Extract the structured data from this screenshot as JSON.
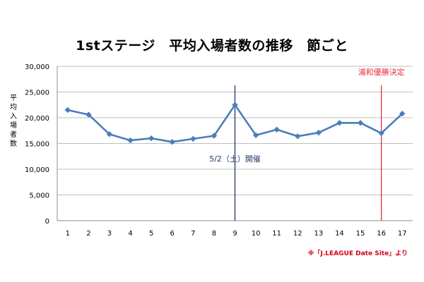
{
  "chart_data": {
    "type": "line",
    "title": "1stステージ　平均入場者数の推移　節ごと",
    "ylabel": "平均入場者数",
    "xlabel": "",
    "x": [
      1,
      2,
      3,
      4,
      5,
      6,
      7,
      8,
      9,
      10,
      11,
      12,
      13,
      14,
      15,
      16,
      17
    ],
    "series": [
      {
        "values": [
          21500,
          20600,
          16800,
          15600,
          16000,
          15300,
          15900,
          16500,
          22500,
          16600,
          17700,
          16400,
          17100,
          19000,
          19000,
          17000,
          20800
        ],
        "color": "#4a7ebb",
        "marker": "diamond"
      }
    ],
    "ylim": [
      0,
      30000
    ],
    "yticks": [
      "0",
      "5,000",
      "10,000",
      "15,000",
      "20,000",
      "25,000",
      "30,000"
    ],
    "grid": "horizontal",
    "annotations": [
      {
        "x": 9,
        "text": "5/2（土）開催",
        "color": "#1f3864"
      },
      {
        "x": 16,
        "text": "浦和優勝決定",
        "color": "#e8303a"
      }
    ]
  },
  "source_note": "※「J.LEAGUE Date Site」より"
}
